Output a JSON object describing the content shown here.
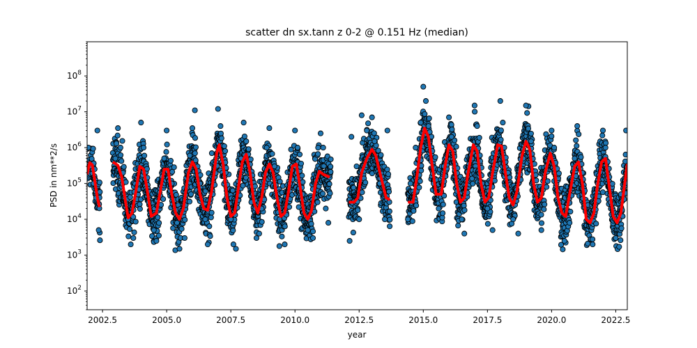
{
  "chart_data": {
    "type": "scatter",
    "title": "scatter dn sx.tann z 0-2 @ 0.151 Hz (median)",
    "xlabel": "year",
    "ylabel": "PSD in nm**2/s",
    "xlim": [
      2001.9,
      2022.95
    ],
    "ylim": [
      30,
      900000000
    ],
    "yscale": "log",
    "grid": false,
    "x_ticks": [
      2002.5,
      2005.0,
      2007.5,
      2010.0,
      2012.5,
      2015.0,
      2017.5,
      2020.0,
      2022.5
    ],
    "x_tick_labels": [
      "2002.5",
      "2005.0",
      "2007.5",
      "2010.0",
      "2012.5",
      "2015.0",
      "2017.5",
      "2020.0",
      "2022.5"
    ],
    "y_ticks": [
      100,
      1000,
      10000,
      100000,
      1000000,
      10000000,
      100000000
    ],
    "y_tick_base": "10",
    "y_tick_exponents": [
      "2",
      "3",
      "4",
      "5",
      "6",
      "7",
      "8"
    ],
    "series": [
      {
        "kind": "scatter",
        "color": "#1f77b4",
        "edge_color": "#000000",
        "data_segments": [
          [
            2001.9,
            2002.4
          ],
          [
            2002.9,
            2011.4
          ],
          [
            2012.1,
            2013.7
          ],
          [
            2014.4,
            2022.95
          ]
        ],
        "points": [
          [
            2001.95,
            1000000
          ],
          [
            2002.05,
            300000
          ],
          [
            2002.15,
            100000
          ],
          [
            2002.25,
            40000
          ],
          [
            2002.3,
            3000000
          ],
          [
            2002.35,
            5000
          ],
          [
            2002.4,
            2600
          ],
          [
            2003.0,
            500000
          ],
          [
            2003.1,
            3500000
          ],
          [
            2003.2,
            1000000
          ],
          [
            2003.3,
            200000
          ],
          [
            2003.5,
            10000
          ],
          [
            2003.6,
            2000
          ],
          [
            2003.7,
            3000
          ],
          [
            2003.9,
            100000
          ],
          [
            2004.0,
            5000000
          ],
          [
            2004.1,
            1000000
          ],
          [
            2004.3,
            30000
          ],
          [
            2004.5,
            5000
          ],
          [
            2004.6,
            2500
          ],
          [
            2004.9,
            500000
          ],
          [
            2005.0,
            3000000
          ],
          [
            2005.2,
            100000
          ],
          [
            2005.4,
            8000
          ],
          [
            2005.5,
            1500
          ],
          [
            2005.7,
            3000
          ],
          [
            2005.9,
            600000
          ],
          [
            2006.0,
            3500000
          ],
          [
            2006.1,
            11000000
          ],
          [
            2006.3,
            100000
          ],
          [
            2006.5,
            10000
          ],
          [
            2006.6,
            2000
          ],
          [
            2006.8,
            50000
          ],
          [
            2007.0,
            12000000
          ],
          [
            2007.1,
            4000000
          ],
          [
            2007.3,
            200000
          ],
          [
            2007.5,
            10000
          ],
          [
            2007.6,
            2000
          ],
          [
            2007.7,
            1500
          ],
          [
            2007.9,
            500000
          ],
          [
            2008.0,
            5000000
          ],
          [
            2008.1,
            1500000
          ],
          [
            2008.3,
            30000
          ],
          [
            2008.5,
            3000
          ],
          [
            2008.7,
            20000
          ],
          [
            2008.9,
            1000000
          ],
          [
            2009.0,
            3500000
          ],
          [
            2009.2,
            300000
          ],
          [
            2009.4,
            10000
          ],
          [
            2009.6,
            2000
          ],
          [
            2009.8,
            100000
          ],
          [
            2010.0,
            3000000
          ],
          [
            2010.1,
            1000000
          ],
          [
            2010.3,
            50000
          ],
          [
            2010.5,
            5000
          ],
          [
            2010.7,
            3000
          ],
          [
            2010.9,
            1000000
          ],
          [
            2011.0,
            2500000
          ],
          [
            2011.1,
            1000000
          ],
          [
            2011.2,
            20000
          ],
          [
            2011.3,
            8000
          ],
          [
            2012.2,
            2000000
          ],
          [
            2012.4,
            300000
          ],
          [
            2012.5,
            10000
          ],
          [
            2012.6,
            8000000
          ],
          [
            2012.8,
            3000000
          ],
          [
            2013.0,
            7000000
          ],
          [
            2013.1,
            1500000
          ],
          [
            2013.3,
            100000
          ],
          [
            2013.5,
            10000
          ],
          [
            2013.6,
            3000000
          ],
          [
            2014.4,
            10000
          ],
          [
            2014.5,
            100000
          ],
          [
            2014.7,
            1000000
          ],
          [
            2014.9,
            5000000
          ],
          [
            2015.0,
            50000000
          ],
          [
            2015.1,
            20000000
          ],
          [
            2015.2,
            4000000
          ],
          [
            2015.4,
            100000
          ],
          [
            2015.6,
            20000
          ],
          [
            2015.8,
            300000
          ],
          [
            2016.0,
            7000000
          ],
          [
            2016.1,
            2000000
          ],
          [
            2016.3,
            100000
          ],
          [
            2016.5,
            10000
          ],
          [
            2016.6,
            4000
          ],
          [
            2016.9,
            500000
          ],
          [
            2017.0,
            15000000
          ],
          [
            2017.1,
            4000000
          ],
          [
            2017.3,
            100000
          ],
          [
            2017.5,
            20000
          ],
          [
            2017.7,
            5000
          ],
          [
            2017.9,
            1000000
          ],
          [
            2018.0,
            20000000
          ],
          [
            2018.1,
            5000000
          ],
          [
            2018.3,
            200000
          ],
          [
            2018.5,
            10000
          ],
          [
            2018.7,
            4000
          ],
          [
            2018.9,
            500000
          ],
          [
            2019.0,
            15000000
          ],
          [
            2019.2,
            1500000
          ],
          [
            2019.4,
            50000
          ],
          [
            2019.6,
            5000
          ],
          [
            2019.8,
            300000
          ],
          [
            2020.0,
            3000000
          ],
          [
            2020.1,
            1000000
          ],
          [
            2020.3,
            30000
          ],
          [
            2020.5,
            2500
          ],
          [
            2020.7,
            8000
          ],
          [
            2020.9,
            500000
          ],
          [
            2021.0,
            4000000
          ],
          [
            2021.2,
            200000
          ],
          [
            2021.4,
            10000
          ],
          [
            2021.6,
            2000
          ],
          [
            2021.8,
            100000
          ],
          [
            2022.0,
            3000000
          ],
          [
            2022.1,
            1000000
          ],
          [
            2022.3,
            30000
          ],
          [
            2022.5,
            3000
          ],
          [
            2022.7,
            50000
          ],
          [
            2022.9,
            3000000
          ]
        ]
      },
      {
        "kind": "line",
        "color": "#ff0000",
        "points": [
          [
            2001.9,
            180000
          ],
          [
            2002.0,
            380000
          ],
          [
            2002.1,
            330000
          ],
          [
            2002.2,
            120000
          ],
          [
            2002.3,
            40000
          ],
          [
            2002.38,
            22000
          ],
          [
            2002.9,
            400000
          ],
          [
            2003.1,
            320000
          ],
          [
            2003.25,
            150000
          ],
          [
            2003.4,
            30000
          ],
          [
            2003.5,
            11000
          ],
          [
            2003.65,
            15000
          ],
          [
            2003.8,
            60000
          ],
          [
            2003.95,
            300000
          ],
          [
            2004.1,
            250000
          ],
          [
            2004.25,
            60000
          ],
          [
            2004.4,
            12000
          ],
          [
            2004.6,
            15000
          ],
          [
            2004.75,
            60000
          ],
          [
            2004.9,
            250000
          ],
          [
            2005.05,
            250000
          ],
          [
            2005.2,
            50000
          ],
          [
            2005.35,
            15000
          ],
          [
            2005.5,
            10000
          ],
          [
            2005.65,
            20000
          ],
          [
            2005.85,
            200000
          ],
          [
            2006.0,
            400000
          ],
          [
            2006.15,
            250000
          ],
          [
            2006.3,
            50000
          ],
          [
            2006.45,
            20000
          ],
          [
            2006.6,
            18000
          ],
          [
            2006.75,
            60000
          ],
          [
            2006.95,
            700000
          ],
          [
            2007.05,
            1200000
          ],
          [
            2007.2,
            350000
          ],
          [
            2007.35,
            40000
          ],
          [
            2007.5,
            12000
          ],
          [
            2007.65,
            15000
          ],
          [
            2007.8,
            80000
          ],
          [
            2007.95,
            400000
          ],
          [
            2008.1,
            650000
          ],
          [
            2008.25,
            200000
          ],
          [
            2008.4,
            30000
          ],
          [
            2008.55,
            15000
          ],
          [
            2008.7,
            40000
          ],
          [
            2008.85,
            200000
          ],
          [
            2009.0,
            350000
          ],
          [
            2009.15,
            200000
          ],
          [
            2009.3,
            40000
          ],
          [
            2009.45,
            12000
          ],
          [
            2009.6,
            15000
          ],
          [
            2009.75,
            60000
          ],
          [
            2009.9,
            300000
          ],
          [
            2010.05,
            350000
          ],
          [
            2010.2,
            80000
          ],
          [
            2010.35,
            15000
          ],
          [
            2010.5,
            10000
          ],
          [
            2010.65,
            18000
          ],
          [
            2010.8,
            100000
          ],
          [
            2010.95,
            220000
          ],
          [
            2011.1,
            180000
          ],
          [
            2011.35,
            150000
          ],
          [
            2012.1,
            30000
          ],
          [
            2012.3,
            30000
          ],
          [
            2012.45,
            40000
          ],
          [
            2012.6,
            200000
          ],
          [
            2012.8,
            500000
          ],
          [
            2013.0,
            900000
          ],
          [
            2013.15,
            600000
          ],
          [
            2013.35,
            150000
          ],
          [
            2013.55,
            40000
          ],
          [
            2013.7,
            35000
          ],
          [
            2014.4,
            30000
          ],
          [
            2014.6,
            30000
          ],
          [
            2014.75,
            150000
          ],
          [
            2014.9,
            1000000
          ],
          [
            2015.05,
            3500000
          ],
          [
            2015.2,
            2000000
          ],
          [
            2015.35,
            300000
          ],
          [
            2015.5,
            50000
          ],
          [
            2015.7,
            50000
          ],
          [
            2015.85,
            300000
          ],
          [
            2016.0,
            1200000
          ],
          [
            2016.15,
            800000
          ],
          [
            2016.3,
            100000
          ],
          [
            2016.45,
            30000
          ],
          [
            2016.6,
            40000
          ],
          [
            2016.75,
            200000
          ],
          [
            2016.95,
            1200000
          ],
          [
            2017.1,
            800000
          ],
          [
            2017.25,
            100000
          ],
          [
            2017.4,
            30000
          ],
          [
            2017.55,
            40000
          ],
          [
            2017.7,
            200000
          ],
          [
            2017.9,
            1200000
          ],
          [
            2018.05,
            1100000
          ],
          [
            2018.2,
            200000
          ],
          [
            2018.35,
            40000
          ],
          [
            2018.5,
            25000
          ],
          [
            2018.65,
            60000
          ],
          [
            2018.85,
            600000
          ],
          [
            2019.0,
            1500000
          ],
          [
            2019.15,
            900000
          ],
          [
            2019.3,
            100000
          ],
          [
            2019.45,
            30000
          ],
          [
            2019.6,
            40000
          ],
          [
            2019.75,
            200000
          ],
          [
            2019.95,
            700000
          ],
          [
            2020.1,
            300000
          ],
          [
            2020.25,
            40000
          ],
          [
            2020.4,
            15000
          ],
          [
            2020.55,
            12000
          ],
          [
            2020.7,
            50000
          ],
          [
            2020.9,
            300000
          ],
          [
            2021.05,
            400000
          ],
          [
            2021.2,
            100000
          ],
          [
            2021.35,
            10000
          ],
          [
            2021.5,
            8000
          ],
          [
            2021.65,
            15000
          ],
          [
            2021.8,
            100000
          ],
          [
            2021.95,
            400000
          ],
          [
            2022.1,
            500000
          ],
          [
            2022.25,
            80000
          ],
          [
            2022.4,
            12000
          ],
          [
            2022.55,
            8000
          ],
          [
            2022.7,
            15000
          ],
          [
            2022.85,
            100000
          ],
          [
            2022.95,
            350000
          ]
        ]
      }
    ]
  }
}
